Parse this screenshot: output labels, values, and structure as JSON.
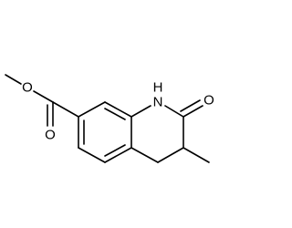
{
  "molecule": {
    "atoms": [
      {
        "label": "O"
      },
      {
        "label": "O"
      },
      {
        "label": "H"
      },
      {
        "label": "N"
      },
      {
        "label": "O"
      }
    ]
  }
}
